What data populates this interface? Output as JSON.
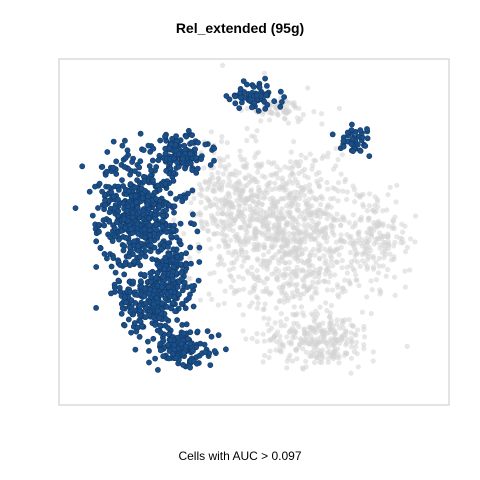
{
  "chart_data": {
    "type": "scatter",
    "title": "Rel_extended (95g)",
    "xlabel": "Cells with AUC > 0.097",
    "ylabel": "",
    "grid": false,
    "legend": "none",
    "colors": {
      "high": "#1a4f8a",
      "low": "#d3d3d3",
      "frame": "#c8c8c8"
    },
    "xlim": [
      0,
      100
    ],
    "ylim": [
      0,
      100
    ],
    "series": [
      {
        "group": "auc_above",
        "clusters": [
          {
            "cx": 20,
            "cy": 45,
            "rx": 10,
            "ry": 15,
            "n": 520
          },
          {
            "cx": 23,
            "cy": 70,
            "rx": 8,
            "ry": 9,
            "n": 230
          },
          {
            "cx": 31,
            "cy": 84,
            "rx": 7,
            "ry": 5,
            "n": 150
          },
          {
            "cx": 31,
            "cy": 27,
            "rx": 7,
            "ry": 5,
            "n": 130
          },
          {
            "cx": 29,
            "cy": 62,
            "rx": 5,
            "ry": 8,
            "n": 110
          },
          {
            "cx": 50,
            "cy": 10,
            "rx": 6,
            "ry": 3,
            "n": 70
          },
          {
            "cx": 76,
            "cy": 23,
            "rx": 4,
            "ry": 3,
            "n": 40
          }
        ]
      },
      {
        "group": "auc_below",
        "clusters": [
          {
            "cx": 58,
            "cy": 50,
            "rx": 19,
            "ry": 22,
            "n": 1000
          },
          {
            "cx": 67,
            "cy": 82,
            "rx": 13,
            "ry": 7,
            "n": 260
          },
          {
            "cx": 82,
            "cy": 53,
            "rx": 8,
            "ry": 11,
            "n": 150
          },
          {
            "cx": 56,
            "cy": 14,
            "rx": 7,
            "ry": 4,
            "n": 70
          },
          {
            "cx": 44,
            "cy": 38,
            "rx": 8,
            "ry": 12,
            "n": 150
          }
        ]
      }
    ]
  }
}
